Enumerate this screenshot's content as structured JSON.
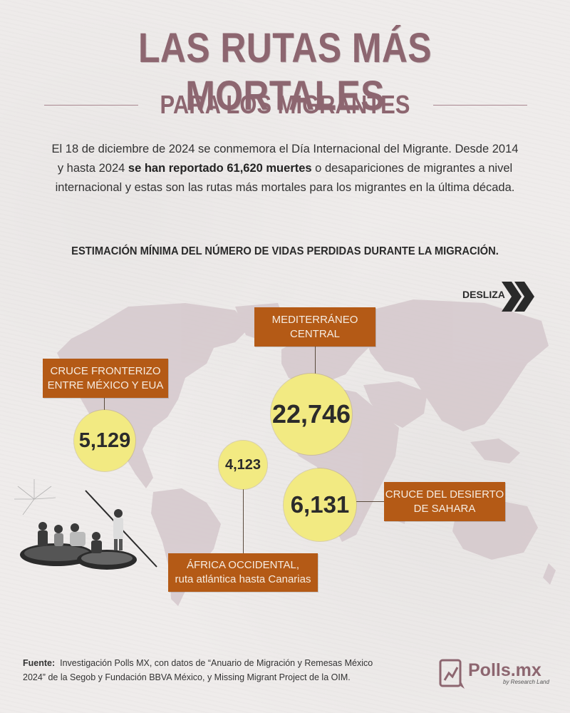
{
  "title": "LAS RUTAS MÁS MORTALES",
  "subtitle": "PARA LOS MIGRANTES",
  "intro": {
    "part1": "El 18 de diciembre de 2024 se conmemora el Día Internacional del Migrante. Desde 2014 y hasta 2024 ",
    "bold": "se han reportado 61,620 muertes",
    "part2": " o desapariciones de migrantes a nivel internacional y estas son las rutas más mortales para los migrantes en la última década."
  },
  "estimation_heading": "ESTIMACIÓN MÍNIMA DEL NÚMERO DE VIDAS PERDIDAS DURANTE LA MIGRACIÓN.",
  "swipe": {
    "label": "DESLIZA",
    "icon": "double-chevron-right-icon"
  },
  "colors": {
    "title": "#8d6670",
    "label_box": "#b45a16",
    "bubble": "#f2ea82",
    "map": "#d5c8cc"
  },
  "routes": {
    "mexico_usa": {
      "label_line1": "CRUCE FRONTERIZO",
      "label_line2": "ENTRE MÉXICO Y EUA",
      "value": "5,129"
    },
    "mediterraneo": {
      "label_line1": "MEDITERRÁNEO",
      "label_line2": "CENTRAL",
      "value": "22,746"
    },
    "africa_occidental": {
      "label_line1": "ÁFRICA OCCIDENTAL,",
      "label_line2": "ruta atlántica hasta Canarias",
      "value": "4,123"
    },
    "sahara": {
      "label_line1": "CRUCE DEL DESIERTO",
      "label_line2": "DE SAHARA",
      "value": "6,131"
    }
  },
  "source": {
    "label": "Fuente:",
    "text": "Investigación Polls MX, con datos de “Anuario de Migración y Remesas México 2024” de la Segob y Fundación BBVA México, y Missing Migrant Project de la OIM."
  },
  "logo": {
    "name": "Polls.mx",
    "tagline": "by Research Land"
  }
}
